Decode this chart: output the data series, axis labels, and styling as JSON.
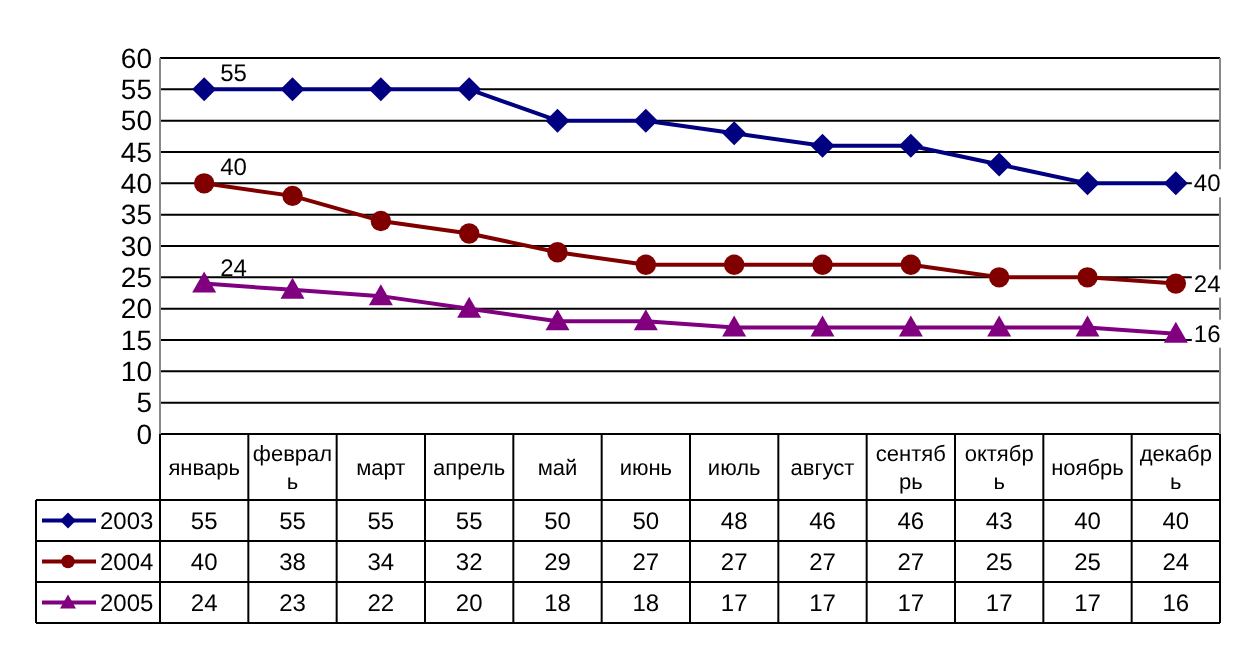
{
  "chart_data": {
    "type": "line",
    "categories": [
      "январь",
      "февраль",
      "март",
      "апрель",
      "май",
      "июнь",
      "июль",
      "август",
      "сентябрь",
      "октябрь",
      "ноябрь",
      "декабрь"
    ],
    "series": [
      {
        "name": "2003",
        "color": "#000080",
        "marker": "diamond",
        "values": [
          55,
          55,
          55,
          55,
          50,
          50,
          48,
          46,
          46,
          43,
          40,
          40
        ]
      },
      {
        "name": "2004",
        "color": "#800000",
        "marker": "circle",
        "values": [
          40,
          38,
          34,
          32,
          29,
          27,
          27,
          27,
          27,
          25,
          25,
          24
        ]
      },
      {
        "name": "2005",
        "color": "#800080",
        "marker": "triangle",
        "values": [
          24,
          23,
          22,
          20,
          18,
          18,
          17,
          17,
          17,
          17,
          17,
          16
        ]
      }
    ],
    "ylim": [
      0,
      60
    ],
    "yticks": [
      0,
      5,
      10,
      15,
      20,
      25,
      30,
      35,
      40,
      45,
      50,
      55,
      60
    ],
    "grid": "y",
    "data_labels": true,
    "legend": "bottom left",
    "annotations": [
      {
        "text": "55",
        "x": "январь",
        "y": 55
      },
      {
        "text": "40",
        "x": "декабрь",
        "y": 40
      },
      {
        "text": "40",
        "x": "январь",
        "y": 40
      },
      {
        "text": "24",
        "x": "декабрь",
        "y": 24
      },
      {
        "text": "24",
        "x": "январь",
        "y": 24
      },
      {
        "text": "16",
        "x": "декабрь",
        "y": 16
      }
    ]
  }
}
